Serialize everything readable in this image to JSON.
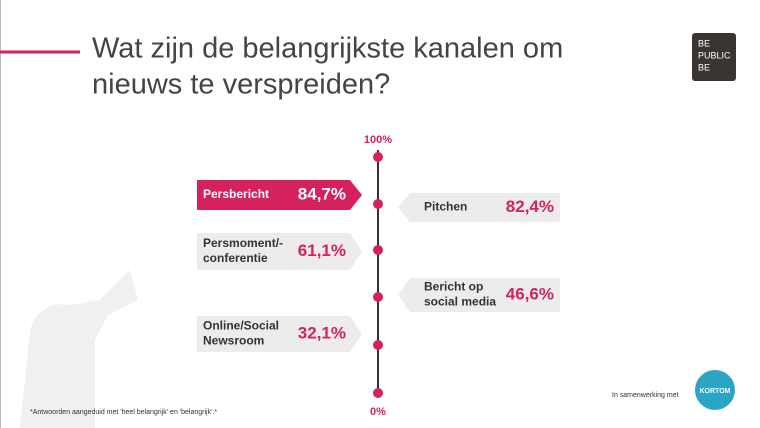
{
  "header": {
    "title_lines": [
      "Wat zijn de belangrijkste kanalen om",
      "nieuws te verspreiden?"
    ],
    "logo": [
      "BE",
      "PUBLIC",
      "BE"
    ]
  },
  "axis": {
    "top": "100%",
    "bottom": "0%"
  },
  "left_items": [
    {
      "label": [
        "Persbericht"
      ],
      "value": "84,7%"
    },
    {
      "label": [
        "Persmoment/-",
        "conferentie"
      ],
      "value": "61,1%"
    },
    {
      "label": [
        "Online/Social",
        "Newsroom"
      ],
      "value": "32,1%"
    }
  ],
  "right_items": [
    {
      "label": [
        "Pitchen"
      ],
      "value": "82,4%"
    },
    {
      "label": [
        "Bericht op",
        "social media"
      ],
      "value": "46,6%"
    }
  ],
  "footnote": "*Antwoorden aangeduid met 'heel belangrijk' en 'belangrijk'.*",
  "partner": {
    "text": "In samenwerking met",
    "logo": "KORTOM"
  }
}
